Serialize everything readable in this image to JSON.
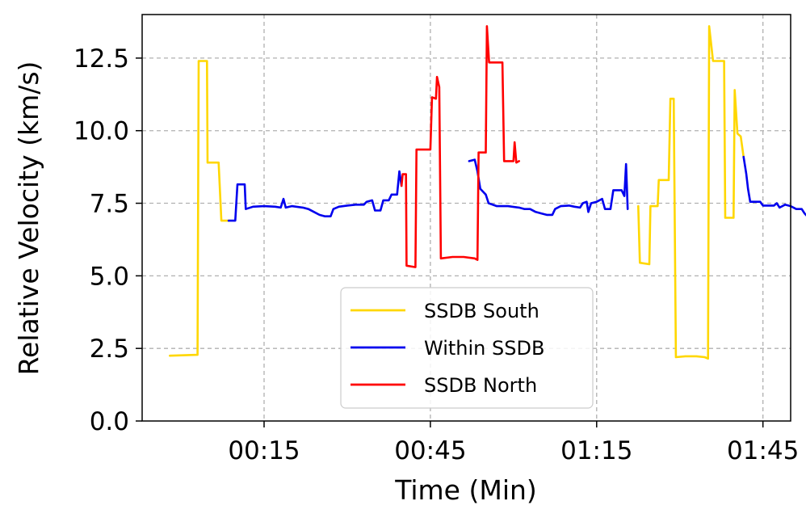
{
  "chart_data": {
    "type": "line",
    "xlabel": "Time (Min)",
    "ylabel": "Relative Velocity (km/s)",
    "xlim": [
      -7,
      110
    ],
    "ylim": [
      0,
      14
    ],
    "x_ticks": [
      15,
      45,
      75,
      105
    ],
    "x_tick_labels": [
      "00:15",
      "00:45",
      "01:15",
      "01:45"
    ],
    "y_ticks": [
      0,
      2.5,
      5,
      7.5,
      10,
      12.5
    ],
    "y_tick_labels": [
      "0.0",
      "2.5",
      "5.0",
      "7.5",
      "10.0",
      "12.5"
    ],
    "grid": true,
    "legend_position": "lower-center",
    "series": [
      {
        "name": "SSDB South",
        "color": "#FFD700",
        "segments": [
          [
            [
              -2,
              2.25
            ],
            [
              3,
              2.28
            ],
            [
              3.2,
              12.4
            ],
            [
              4.7,
              12.4
            ],
            [
              4.8,
              8.9
            ],
            [
              6.8,
              8.9
            ],
            [
              7.3,
              6.9
            ],
            [
              8.6,
              6.9
            ]
          ],
          [
            [
              82.5,
              7.4
            ],
            [
              82.8,
              5.45
            ],
            [
              84.5,
              5.4
            ],
            [
              84.7,
              7.4
            ],
            [
              86,
              7.4
            ],
            [
              86.2,
              8.3
            ],
            [
              88,
              8.3
            ],
            [
              88.3,
              11.1
            ],
            [
              88.9,
              11.1
            ],
            [
              89.3,
              2.2
            ],
            [
              91,
              2.23
            ],
            [
              93,
              2.23
            ],
            [
              94.5,
              2.2
            ],
            [
              95.1,
              2.15
            ],
            [
              95.3,
              13.6
            ],
            [
              96,
              12.4
            ],
            [
              98,
              12.4
            ],
            [
              98.2,
              7
            ],
            [
              99.7,
              7
            ],
            [
              99.9,
              11.4
            ],
            [
              100.4,
              9.9
            ],
            [
              101,
              9.8
            ],
            [
              101.5,
              9.1
            ]
          ]
        ]
      },
      {
        "name": "Within SSDB",
        "color": "#0000EE",
        "segments": [
          [
            [
              8.6,
              6.9
            ],
            [
              9.8,
              6.9
            ],
            [
              10.2,
              8.15
            ],
            [
              11.5,
              8.15
            ],
            [
              11.7,
              7.3
            ],
            [
              13,
              7.38
            ],
            [
              15,
              7.4
            ],
            [
              17,
              7.38
            ],
            [
              18,
              7.35
            ],
            [
              18.5,
              7.65
            ],
            [
              18.9,
              7.35
            ],
            [
              20,
              7.4
            ],
            [
              22,
              7.35
            ],
            [
              23,
              7.3
            ],
            [
              24,
              7.2
            ],
            [
              25,
              7.1
            ],
            [
              26,
              7.05
            ],
            [
              27,
              7.05
            ],
            [
              27.5,
              7.3
            ],
            [
              28.5,
              7.38
            ],
            [
              30,
              7.42
            ],
            [
              31.5,
              7.45
            ],
            [
              33,
              7.45
            ],
            [
              33.5,
              7.55
            ],
            [
              34.5,
              7.6
            ],
            [
              35,
              7.25
            ],
            [
              36,
              7.25
            ],
            [
              36.5,
              7.6
            ],
            [
              37.5,
              7.6
            ],
            [
              38,
              7.8
            ],
            [
              39,
              7.8
            ],
            [
              39.4,
              8.6
            ],
            [
              39.8,
              8.1
            ]
          ],
          [
            [
              52,
              8.95
            ],
            [
              53,
              9.0
            ],
            [
              53.5,
              8.6
            ],
            [
              54,
              8.0
            ],
            [
              55,
              7.8
            ],
            [
              55.5,
              7.5
            ],
            [
              57,
              7.4
            ],
            [
              59,
              7.4
            ],
            [
              61,
              7.35
            ],
            [
              62,
              7.3
            ],
            [
              63,
              7.3
            ],
            [
              64,
              7.2
            ],
            [
              65,
              7.15
            ],
            [
              66,
              7.1
            ],
            [
              67,
              7.1
            ],
            [
              67.5,
              7.3
            ],
            [
              68.5,
              7.4
            ],
            [
              70,
              7.42
            ],
            [
              71,
              7.38
            ],
            [
              72,
              7.35
            ],
            [
              72.5,
              7.5
            ],
            [
              73.2,
              7.55
            ],
            [
              73.5,
              7.2
            ],
            [
              74,
              7.5
            ],
            [
              75,
              7.55
            ],
            [
              76,
              7.65
            ],
            [
              76.5,
              7.3
            ],
            [
              77.5,
              7.3
            ],
            [
              78,
              7.95
            ],
            [
              79.5,
              7.95
            ],
            [
              80,
              7.75
            ],
            [
              80.3,
              8.85
            ],
            [
              80.6,
              7.3
            ]
          ],
          [
            [
              101.5,
              9.1
            ],
            [
              102,
              8.5
            ],
            [
              102.3,
              8.0
            ],
            [
              102.7,
              7.55
            ],
            [
              104.5,
              7.55
            ],
            [
              105,
              7.42
            ],
            [
              107,
              7.42
            ],
            [
              107.5,
              7.5
            ],
            [
              108,
              7.35
            ],
            [
              109,
              7.45
            ],
            [
              110,
              7.4
            ],
            [
              111,
              7.3
            ],
            [
              112,
              7.3
            ],
            [
              112.5,
              7.15
            ],
            [
              113,
              7.05
            ],
            [
              115,
              7.05
            ]
          ]
        ]
      },
      {
        "name": "SSDB North",
        "color": "#FF0000",
        "segments": [
          [
            [
              39.8,
              8.1
            ],
            [
              40,
              8.5
            ],
            [
              40.6,
              8.5
            ],
            [
              40.7,
              5.35
            ],
            [
              42.3,
              5.3
            ],
            [
              42.5,
              9.35
            ],
            [
              45,
              9.35
            ],
            [
              45.3,
              11.15
            ],
            [
              46,
              11.1
            ],
            [
              46.2,
              11.85
            ],
            [
              46.6,
              11.5
            ],
            [
              46.9,
              5.6
            ],
            [
              49,
              5.65
            ],
            [
              51,
              5.65
            ],
            [
              53,
              5.6
            ],
            [
              53.5,
              5.55
            ],
            [
              53.7,
              9.25
            ],
            [
              55,
              9.25
            ],
            [
              55.2,
              13.6
            ],
            [
              55.6,
              12.35
            ],
            [
              58,
              12.35
            ],
            [
              58.3,
              8.95
            ],
            [
              60,
              8.95
            ],
            [
              60.2,
              9.6
            ],
            [
              60.5,
              8.9
            ],
            [
              61,
              8.95
            ]
          ]
        ]
      }
    ]
  }
}
